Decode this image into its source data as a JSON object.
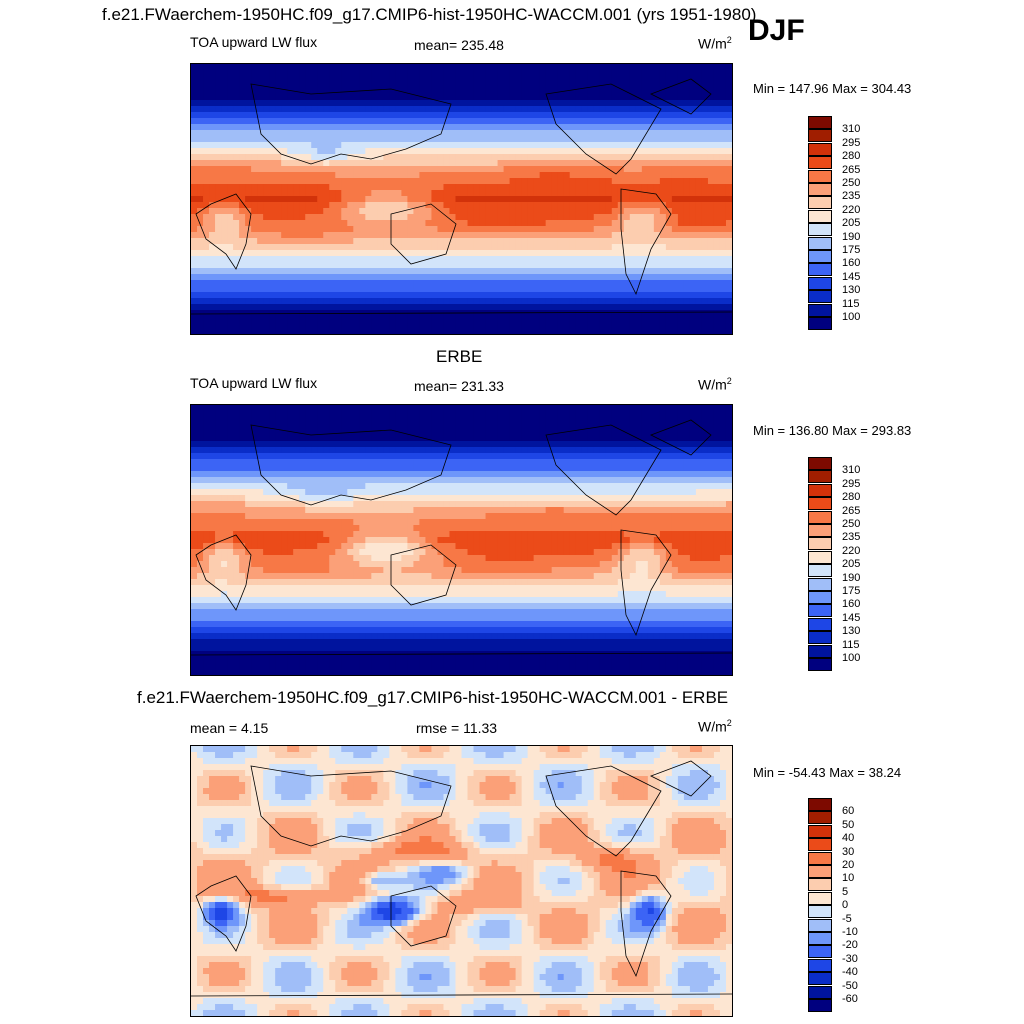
{
  "panel_top": {
    "title": "f.e21.FWaerchem-1950HC.f09_g17.CMIP6-hist-1950HC-WACCM.001 (yrs 1951-1980)",
    "season": "DJF",
    "left_label": "TOA upward LW flux",
    "center_label": "mean= 235.48",
    "units": "W/m",
    "units_sup": "2",
    "minmax": "Min = 147.96 Max = 304.43"
  },
  "panel_middle": {
    "title": "ERBE",
    "left_label": "TOA upward LW flux",
    "center_label": "mean= 231.33",
    "units": "W/m",
    "units_sup": "2",
    "minmax": "Min = 136.80 Max = 293.83"
  },
  "panel_bottom": {
    "title": "f.e21.FWaerchem-1950HC.f09_g17.CMIP6-hist-1950HC-WACCM.001 - ERBE",
    "left_label": "mean =   4.15",
    "center_label": "rmse =  11.33",
    "units": "W/m",
    "units_sup": "2",
    "minmax": "Min = -54.43 Max =  38.24"
  },
  "chart_data": [
    {
      "type": "heatmap",
      "title": "f.e21.FWaerchem-1950HC.f09_g17.CMIP6-hist-1950HC-WACCM.001 (yrs 1951-1980)",
      "variable": "TOA upward LW flux",
      "season": "DJF",
      "mean": 235.48,
      "min": 147.96,
      "max": 304.43,
      "units": "W/m2",
      "colorbar_levels": [
        100,
        115,
        130,
        145,
        160,
        175,
        190,
        205,
        220,
        235,
        250,
        265,
        280,
        295,
        310
      ]
    },
    {
      "type": "heatmap",
      "title": "ERBE",
      "variable": "TOA upward LW flux",
      "mean": 231.33,
      "min": 136.8,
      "max": 293.83,
      "units": "W/m2",
      "colorbar_levels": [
        100,
        115,
        130,
        145,
        160,
        175,
        190,
        205,
        220,
        235,
        250,
        265,
        280,
        295,
        310
      ]
    },
    {
      "type": "heatmap",
      "title": "f.e21.FWaerchem-1950HC.f09_g17.CMIP6-hist-1950HC-WACCM.001 - ERBE",
      "variable": "difference",
      "mean": 4.15,
      "rmse": 11.33,
      "min": -54.43,
      "max": 38.24,
      "units": "W/m2",
      "colorbar_levels": [
        -60,
        -50,
        -40,
        -30,
        -20,
        -10,
        -5,
        0,
        5,
        10,
        20,
        30,
        40,
        50,
        60
      ]
    }
  ],
  "colors": {
    "flux_scale": [
      "#00007f",
      "#00149e",
      "#0a2dc8",
      "#1e46e6",
      "#3c64f5",
      "#6e96fa",
      "#a0bef8",
      "#d2e4fa",
      "#fde6d2",
      "#fccdaf",
      "#fba078",
      "#f77846",
      "#eb4b19",
      "#d2320a",
      "#a01e00",
      "#7d0a00"
    ],
    "diff_scale": [
      "#00007f",
      "#00149e",
      "#0a2dc8",
      "#1e46e6",
      "#3c64f5",
      "#6e96fa",
      "#a0bef8",
      "#d2e4fa",
      "#fde6d2",
      "#fccdaf",
      "#fba078",
      "#f77846",
      "#eb4b19",
      "#d2320a",
      "#a01e00",
      "#7d0a00"
    ]
  }
}
